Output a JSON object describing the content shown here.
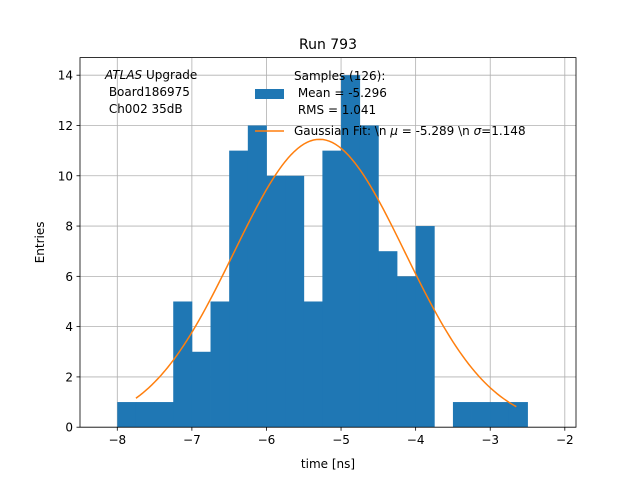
{
  "chart_data": {
    "type": "bar",
    "title": "Run 793",
    "xlabel": "time [ns]",
    "ylabel": "Entries",
    "xlim": [
      -8.5,
      -1.85
    ],
    "ylim": [
      0,
      14.7
    ],
    "grid": true,
    "xticks": [
      -8,
      -7,
      -6,
      -5,
      -4,
      -3,
      -2
    ],
    "xtick_labels": [
      "−8",
      "−7",
      "−6",
      "−5",
      "−4",
      "−3",
      "−2"
    ],
    "yticks": [
      0,
      2,
      4,
      6,
      8,
      10,
      12,
      14
    ],
    "ytick_labels": [
      "0",
      "2",
      "4",
      "6",
      "8",
      "10",
      "12",
      "14"
    ],
    "histogram": {
      "name": "Samples (126):\n Mean = -5.296\n RMS = 1.041",
      "color": "#1f77b4",
      "bin_edges": [
        -8.0,
        -7.75,
        -7.5,
        -7.25,
        -7.0,
        -6.75,
        -6.5,
        -6.25,
        -6.0,
        -5.75,
        -5.5,
        -5.25,
        -5.0,
        -4.75,
        -4.5,
        -4.25,
        -4.0,
        -3.75,
        -3.5,
        -3.25,
        -3.0,
        -2.75,
        -2.5
      ],
      "counts": [
        1,
        1,
        1,
        5,
        3,
        5,
        11,
        12,
        10,
        10,
        5,
        11,
        14,
        12,
        7,
        6,
        8,
        0,
        1,
        1,
        1,
        1
      ]
    },
    "fit": {
      "name": "Gaussian Fit: \\n $\\mu$ = -5.289 \\n $\\sigma$=1.148",
      "color": "#ff7f0e",
      "mu": -5.289,
      "sigma": 1.148,
      "amplitude": 11.45,
      "x_range": [
        -7.75,
        -2.65
      ]
    },
    "legend": {
      "placement": "top-center",
      "hist_lines": [
        "Samples (126):",
        " Mean = -5.296",
        " RMS = 1.041"
      ],
      "fit_label_prefix": "Gaussian Fit: \\n ",
      "fit_mu_symbol": "μ",
      "fit_label_middle": " = -5.289 \\n ",
      "fit_sigma_symbol": "σ",
      "fit_label_suffix": "=1.148"
    },
    "annotation": {
      "italic": "ATLAS",
      "rest": " Upgrade",
      "line2": " Board186975",
      "line3": " Ch002 35dB"
    }
  }
}
